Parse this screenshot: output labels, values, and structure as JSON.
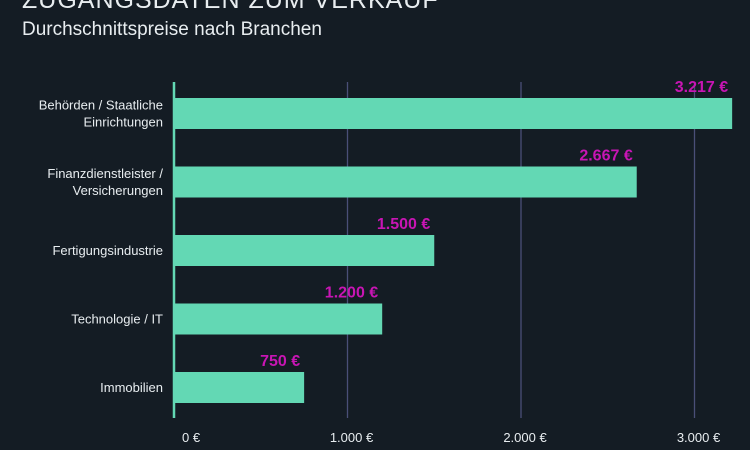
{
  "header": {
    "title": "ZUGANGSDATEN ZUM VERKAUF",
    "subtitle": "Durchschnittspreise nach Branchen"
  },
  "colors": {
    "background": "#141c24",
    "bar": "#63d8b4",
    "value_label": "#c815b4",
    "text": "#e8edf0",
    "grid": "#4a4f78",
    "axis": "#63d8b4"
  },
  "chart_data": {
    "type": "bar",
    "orientation": "horizontal",
    "title": "ZUGANGSDATEN ZUM VERKAUF",
    "subtitle": "Durchschnittspreise nach Branchen",
    "categories": [
      [
        "Behörden / Staatliche",
        "Einrichtungen"
      ],
      [
        "Finanzdienstleister /",
        "Versicherungen"
      ],
      [
        "Fertigungsindustrie"
      ],
      [
        "Technologie / IT"
      ],
      [
        "Immobilien"
      ]
    ],
    "values": [
      3217,
      2667,
      1500,
      1200,
      750
    ],
    "value_labels": [
      "3.217 €",
      "2.667 €",
      "1.500 €",
      "1.200 €",
      "750 €"
    ],
    "xlim": [
      0,
      3200
    ],
    "xticks": [
      0,
      1000,
      2000,
      3000
    ],
    "xtick_labels": [
      "0 €",
      "1.000 €",
      "2.000 €",
      "3.000 €"
    ],
    "grid": "vertical",
    "legend": "none",
    "xlabel": "",
    "ylabel": ""
  }
}
